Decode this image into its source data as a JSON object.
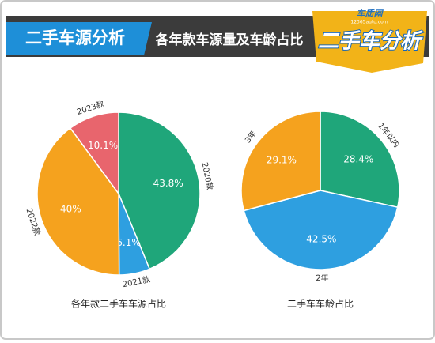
{
  "header": {
    "tag": "二手车源分析",
    "title": "各年款车源量及车龄占比",
    "logo": "二手车分析",
    "brand": "车质网",
    "site": "12365auto.com"
  },
  "chart_data": [
    {
      "type": "pie",
      "title": "各年款二手车车源占比",
      "categories": [
        "2020款",
        "2021款",
        "2022款",
        "2023款"
      ],
      "values": [
        43.8,
        6.1,
        40,
        10.1
      ],
      "value_labels": [
        "43.8%",
        "6.1%",
        "40%",
        "10.1%"
      ],
      "colors": [
        "#1fa67a",
        "#2e9fe0",
        "#f5a21e",
        "#e8656d"
      ]
    },
    {
      "type": "pie",
      "title": "二手车车龄占比",
      "categories": [
        "1年以内",
        "2年",
        "3年"
      ],
      "values": [
        28.4,
        42.5,
        29.1
      ],
      "value_labels": [
        "28.4%",
        "42.5%",
        "29.1%"
      ],
      "colors": [
        "#1fa67a",
        "#2e9fe0",
        "#f5a21e"
      ]
    }
  ]
}
